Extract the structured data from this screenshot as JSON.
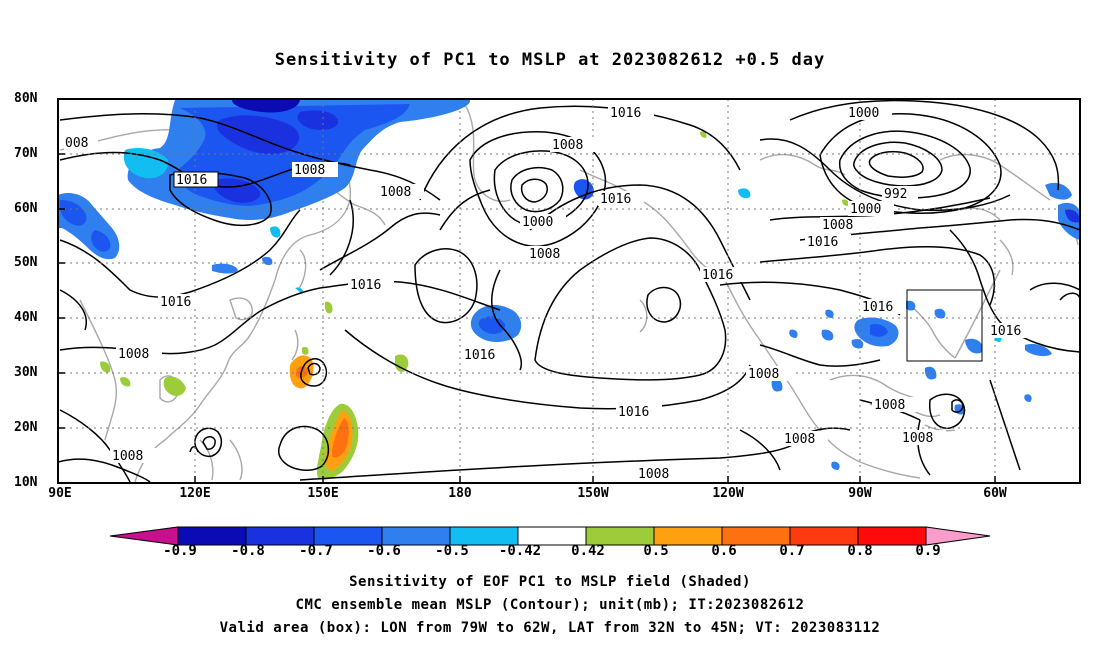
{
  "title": "Sensitivity of PC1 to MSLP at 2023082612 +0.5 day",
  "lat_labels": [
    "80N",
    "70N",
    "60N",
    "50N",
    "40N",
    "30N",
    "20N",
    "10N"
  ],
  "lon_labels": [
    "90E",
    "120E",
    "150E",
    "180",
    "150W",
    "120W",
    "90W",
    "60W"
  ],
  "colorbar": {
    "labels": [
      "-0.9",
      "-0.8",
      "-0.7",
      "-0.6",
      "-0.5",
      "-0.42",
      "0.42",
      "0.5",
      "0.6",
      "0.7",
      "0.8",
      "0.9"
    ],
    "colors": [
      "#c8108e",
      "#0b0bb5",
      "#1a31e0",
      "#1c56f0",
      "#2f7fee",
      "#12bdf2",
      "#ffffff",
      "#9ccc3a",
      "#ffa010",
      "#ff7010",
      "#ff3a10",
      "#ff0a0a",
      "#f99ccc"
    ]
  },
  "contour_labels": [
    "008",
    "1016",
    "1008",
    "1008",
    "1016",
    "1016",
    "1008",
    "1008",
    "1000",
    "1008",
    "1016",
    "1016",
    "1016",
    "1000",
    "992",
    "1000",
    "1008",
    "1016",
    "1016",
    "1016",
    "1008",
    "1016",
    "1008",
    "1008",
    "1008",
    "1008",
    "1008"
  ],
  "footer": {
    "line1": "Sensitivity of EOF PC1 to MSLP field (Shaded)",
    "line2": "CMC ensemble mean MSLP (Contour); unit(mb); IT:2023082612",
    "line3": "Valid area (box): LON from 79W to 62W, LAT from 32N to 45N; VT: 2023083112"
  }
}
